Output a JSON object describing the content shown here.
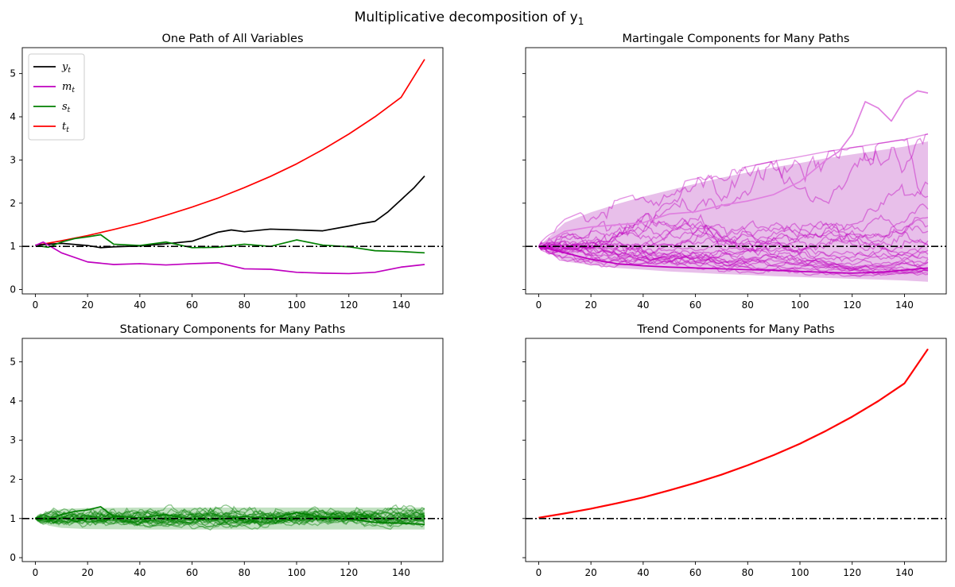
{
  "figure": {
    "suptitle": "Multiplicative decomposition of y",
    "suptitle_sub": "1"
  },
  "colors": {
    "y": "#000000",
    "m": "#bf00bf",
    "s": "#008000",
    "t": "#ff0000",
    "band_m": "#d58bd8",
    "band_s": "#8fc98f"
  },
  "chart_data": [
    {
      "type": "line",
      "title": "One Path of All Variables",
      "xlim": [
        -5,
        156
      ],
      "ylim": [
        -0.1,
        5.6
      ],
      "xticks": [
        0,
        20,
        40,
        60,
        80,
        100,
        120,
        140
      ],
      "yticks": [
        0,
        1,
        2,
        3,
        4,
        5
      ],
      "xtick_labels": [
        "0",
        "20",
        "40",
        "60",
        "80",
        "100",
        "120",
        "140"
      ],
      "ytick_labels": [
        "0",
        "1",
        "2",
        "3",
        "4",
        "5"
      ],
      "hline": 1,
      "legend": {
        "placement": "upper-left",
        "entries": [
          {
            "var": "y",
            "sub": "t",
            "color": "#000000"
          },
          {
            "var": "m",
            "sub": "t",
            "color": "#bf00bf"
          },
          {
            "var": "s",
            "sub": "t",
            "color": "#008000"
          },
          {
            "var": "t",
            "sub": "t",
            "color": "#ff0000"
          }
        ]
      },
      "series": [
        {
          "color": "#ff0000",
          "x": [
            0,
            10,
            20,
            30,
            40,
            50,
            60,
            70,
            80,
            90,
            100,
            110,
            120,
            130,
            140,
            149
          ],
          "values": [
            1.02,
            1.13,
            1.25,
            1.39,
            1.54,
            1.72,
            1.91,
            2.12,
            2.36,
            2.62,
            2.91,
            3.24,
            3.6,
            4.0,
            4.45,
            5.33
          ]
        },
        {
          "color": "#000000",
          "x": [
            0,
            10,
            20,
            25,
            30,
            40,
            50,
            60,
            70,
            75,
            80,
            90,
            100,
            110,
            120,
            125,
            130,
            135,
            140,
            145,
            149
          ],
          "values": [
            1.03,
            1.07,
            1.02,
            0.97,
            0.99,
            1.01,
            1.06,
            1.12,
            1.33,
            1.38,
            1.34,
            1.4,
            1.38,
            1.36,
            1.47,
            1.53,
            1.58,
            1.8,
            2.08,
            2.36,
            2.63
          ]
        },
        {
          "color": "#008000",
          "x": [
            0,
            5,
            10,
            15,
            20,
            25,
            30,
            40,
            50,
            60,
            70,
            80,
            90,
            100,
            110,
            120,
            130,
            140,
            149
          ],
          "values": [
            1.02,
            0.98,
            1.1,
            1.18,
            1.22,
            1.27,
            1.05,
            1.02,
            1.1,
            0.97,
            0.98,
            1.05,
            1.0,
            1.15,
            1.03,
            0.99,
            0.9,
            0.88,
            0.85
          ]
        },
        {
          "color": "#bf00bf",
          "x": [
            0,
            3,
            10,
            20,
            30,
            40,
            50,
            60,
            70,
            80,
            90,
            100,
            110,
            120,
            130,
            140,
            149
          ],
          "values": [
            1.02,
            1.1,
            0.85,
            0.64,
            0.58,
            0.6,
            0.57,
            0.6,
            0.62,
            0.48,
            0.47,
            0.4,
            0.38,
            0.37,
            0.4,
            0.52,
            0.58
          ]
        }
      ]
    },
    {
      "type": "line",
      "title": "Martingale Components for Many Paths",
      "xlim": [
        -5,
        156
      ],
      "ylim": [
        -0.1,
        5.6
      ],
      "xticks": [
        0,
        20,
        40,
        60,
        80,
        100,
        120,
        140
      ],
      "yticks": [
        0,
        1,
        2,
        3,
        4,
        5
      ],
      "xtick_labels": [
        "0",
        "20",
        "40",
        "60",
        "80",
        "100",
        "120",
        "140"
      ],
      "ytick_labels": [
        "",
        "",
        "",
        "",
        "",
        ""
      ],
      "hline": 1,
      "band": {
        "color": "#d58bd8",
        "x": [
          0,
          10,
          20,
          30,
          40,
          50,
          60,
          70,
          80,
          90,
          100,
          110,
          120,
          130,
          140,
          149
        ],
        "upper": [
          1.0,
          1.55,
          1.79,
          1.98,
          2.15,
          2.3,
          2.45,
          2.59,
          2.71,
          2.83,
          2.93,
          3.04,
          3.13,
          3.22,
          3.31,
          3.43
        ],
        "lower": [
          1.0,
          0.65,
          0.57,
          0.5,
          0.46,
          0.42,
          0.39,
          0.36,
          0.34,
          0.31,
          0.29,
          0.27,
          0.25,
          0.23,
          0.21,
          0.18
        ]
      },
      "many_paths": {
        "count": 25,
        "color": "#bf00bf",
        "kind": "martingale"
      },
      "series": [
        {
          "color": "#e080e0",
          "x": [
            0,
            10,
            20,
            30,
            40,
            50,
            60,
            70,
            80,
            90,
            100,
            110,
            115,
            120,
            125,
            130,
            135,
            140,
            145,
            149
          ],
          "values": [
            1.0,
            1.35,
            1.45,
            1.5,
            1.55,
            1.75,
            1.8,
            1.95,
            2.05,
            2.2,
            2.5,
            3.0,
            3.2,
            3.6,
            4.35,
            4.2,
            3.9,
            4.4,
            4.6,
            4.55
          ]
        },
        {
          "color": "#bf00bf",
          "x": [
            0,
            10,
            20,
            30,
            40,
            50,
            60,
            70,
            80,
            90,
            100,
            110,
            120,
            130,
            140,
            149
          ],
          "values": [
            1.0,
            0.85,
            0.7,
            0.6,
            0.55,
            0.52,
            0.5,
            0.48,
            0.46,
            0.45,
            0.42,
            0.4,
            0.38,
            0.4,
            0.45,
            0.5
          ]
        }
      ]
    },
    {
      "type": "line",
      "title": "Stationary Components for Many Paths",
      "xlim": [
        -5,
        156
      ],
      "ylim": [
        -0.1,
        5.6
      ],
      "xticks": [
        0,
        20,
        40,
        60,
        80,
        100,
        120,
        140
      ],
      "yticks": [
        0,
        1,
        2,
        3,
        4,
        5
      ],
      "xtick_labels": [
        "0",
        "20",
        "40",
        "60",
        "80",
        "100",
        "120",
        "140"
      ],
      "ytick_labels": [
        "0",
        "1",
        "2",
        "3",
        "4",
        "5"
      ],
      "hline": 1,
      "band": {
        "color": "#8fc98f",
        "x": [
          0,
          5,
          10,
          20,
          40,
          60,
          80,
          100,
          120,
          140,
          149
        ],
        "upper": [
          1.0,
          1.18,
          1.24,
          1.27,
          1.28,
          1.28,
          1.28,
          1.28,
          1.28,
          1.28,
          1.28
        ],
        "lower": [
          1.0,
          0.82,
          0.76,
          0.73,
          0.72,
          0.72,
          0.72,
          0.72,
          0.72,
          0.72,
          0.72
        ]
      },
      "many_paths": {
        "count": 25,
        "color": "#008000",
        "kind": "stationary"
      },
      "series": [
        {
          "color": "#008000",
          "x": [
            0,
            5,
            10,
            15,
            20,
            25,
            30,
            40,
            50,
            60,
            70,
            80,
            90,
            100,
            110,
            120,
            130,
            140,
            149
          ],
          "values": [
            1.02,
            0.98,
            1.1,
            1.18,
            1.22,
            1.3,
            1.05,
            1.02,
            1.1,
            0.97,
            0.98,
            1.05,
            1.0,
            1.15,
            1.03,
            0.99,
            0.9,
            0.88,
            0.85
          ]
        }
      ]
    },
    {
      "type": "line",
      "title": "Trend Components for Many Paths",
      "xlim": [
        -5,
        156
      ],
      "ylim": [
        -0.1,
        5.6
      ],
      "xticks": [
        0,
        20,
        40,
        60,
        80,
        100,
        120,
        140
      ],
      "yticks": [
        0,
        1,
        2,
        3,
        4,
        5
      ],
      "xtick_labels": [
        "0",
        "20",
        "40",
        "60",
        "80",
        "100",
        "120",
        "140"
      ],
      "ytick_labels": [
        "",
        "",
        "",
        "",
        "",
        ""
      ],
      "hline": 1,
      "series": [
        {
          "color": "#ff0000",
          "x": [
            0,
            10,
            20,
            30,
            40,
            50,
            60,
            70,
            80,
            90,
            100,
            110,
            120,
            130,
            140,
            149
          ],
          "values": [
            1.02,
            1.13,
            1.25,
            1.39,
            1.54,
            1.72,
            1.91,
            2.12,
            2.36,
            2.62,
            2.91,
            3.24,
            3.6,
            4.0,
            4.45,
            5.33
          ]
        }
      ]
    }
  ]
}
